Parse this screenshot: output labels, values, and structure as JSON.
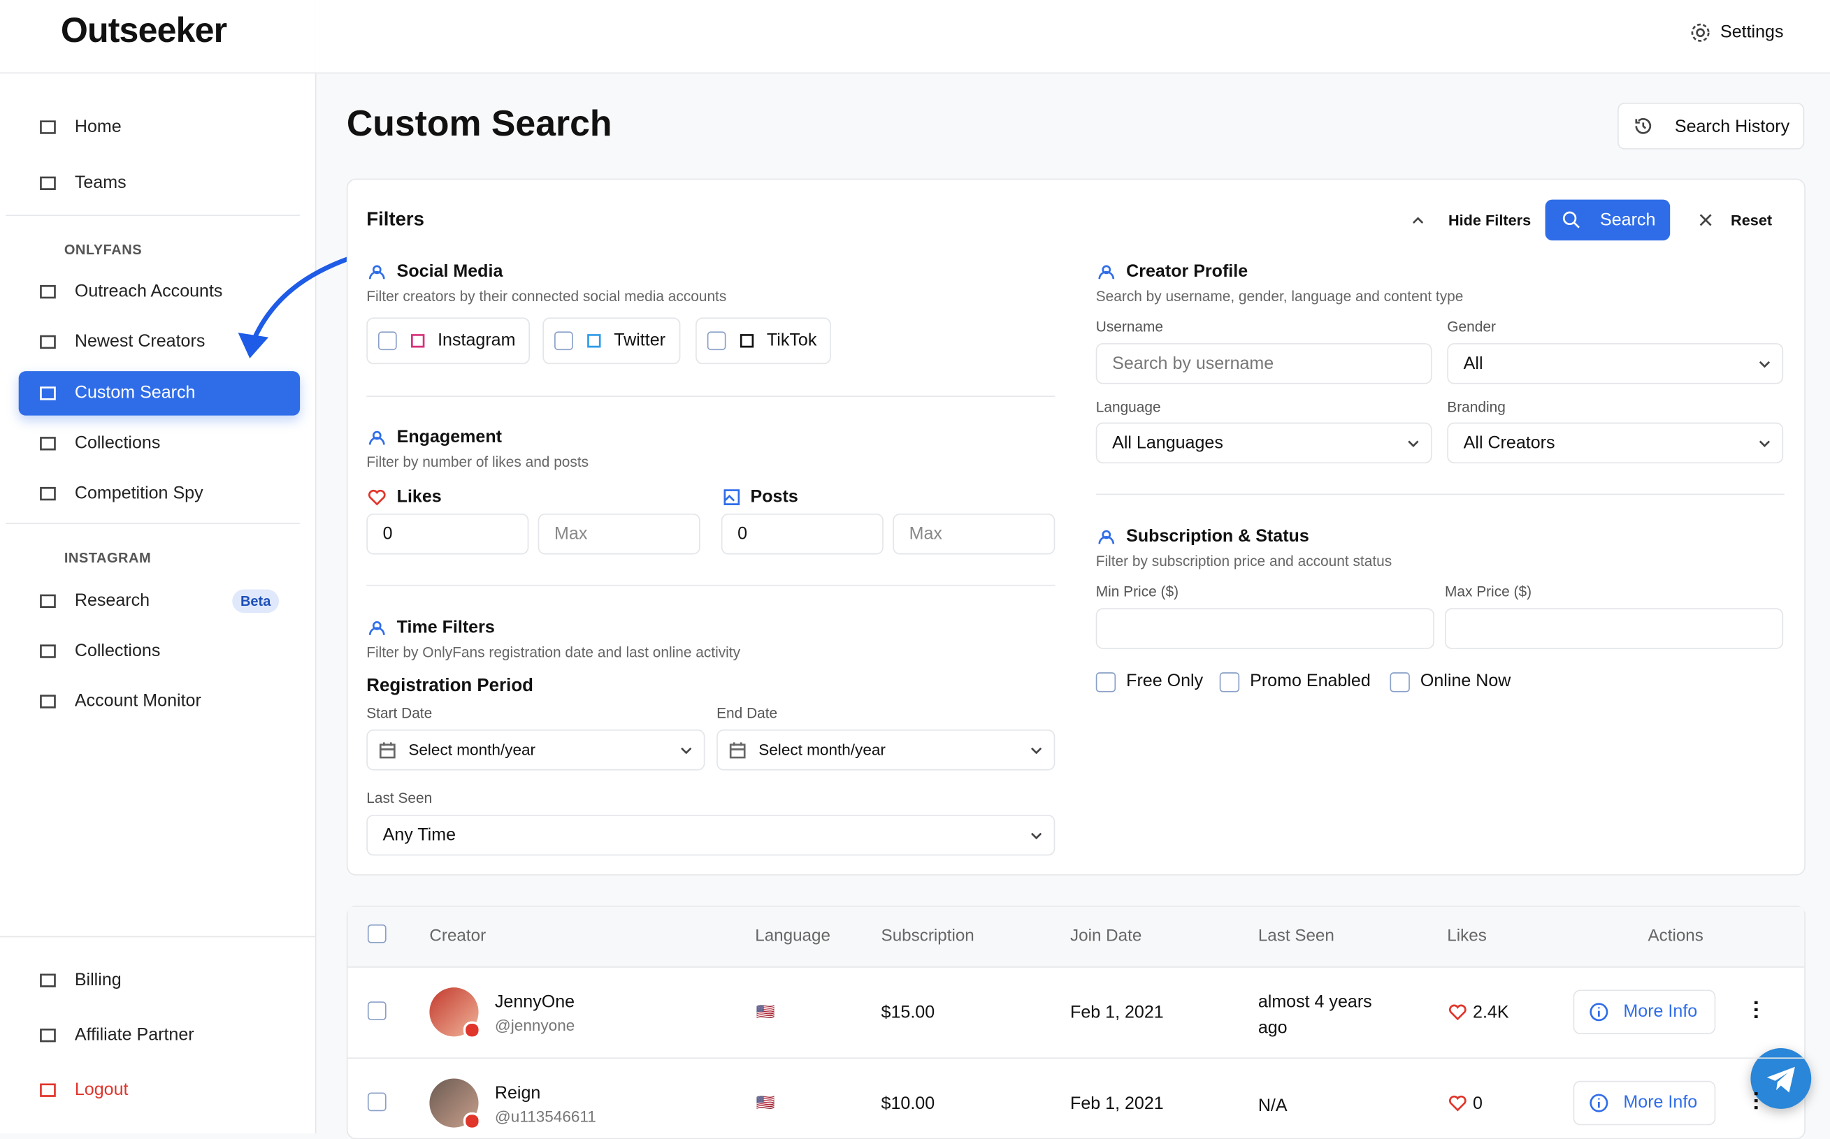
{
  "brand": "Outseeker",
  "header": {
    "settings": "Settings"
  },
  "sidebar": {
    "top": [
      "Home",
      "Teams"
    ],
    "sections": [
      {
        "title": "ONLYFANS",
        "items": [
          "Outreach Accounts",
          "Newest Creators",
          "Custom Search",
          "Collections",
          "Competition Spy"
        ]
      },
      {
        "title": "INSTAGRAM",
        "items": [
          "Research",
          "Collections",
          "Account Monitor"
        ],
        "badge": "Beta"
      }
    ],
    "bottom": [
      "Billing",
      "Affiliate Partner",
      "Logout"
    ]
  },
  "page": {
    "title": "Custom Search",
    "history": "Search History"
  },
  "filters": {
    "title": "Filters",
    "hide": "Hide Filters",
    "search": "Search",
    "reset": "Reset",
    "social": {
      "title": "Social Media",
      "desc": "Filter creators by their connected social media accounts",
      "options": [
        "Instagram",
        "Twitter",
        "TikTok"
      ]
    },
    "engagement": {
      "title": "Engagement",
      "desc": "Filter by number of likes and posts",
      "likes": "Likes",
      "posts": "Posts",
      "min_value": "0",
      "max_placeholder": "Max"
    },
    "time": {
      "title": "Time Filters",
      "desc": "Filter by OnlyFans registration date and last online activity",
      "period": "Registration Period",
      "start": "Start Date",
      "end": "End Date",
      "select": "Select month/year",
      "last_seen": "Last Seen",
      "last_seen_value": "Any Time"
    },
    "profile": {
      "title": "Creator Profile",
      "desc": "Search by username, gender, language and content type",
      "username": "Username",
      "username_placeholder": "Search by username",
      "gender": "Gender",
      "gender_value": "All",
      "language": "Language",
      "language_value": "All Languages",
      "branding": "Branding",
      "branding_value": "All Creators"
    },
    "subscription": {
      "title": "Subscription & Status",
      "desc": "Filter by subscription price and account status",
      "min": "Min Price ($)",
      "max": "Max Price ($)",
      "checks": [
        "Free Only",
        "Promo Enabled",
        "Online Now"
      ]
    }
  },
  "table": {
    "headers": [
      "Creator",
      "Language",
      "Subscription",
      "Join Date",
      "Last Seen",
      "Likes",
      "Actions"
    ],
    "rows": [
      {
        "name": "JennyOne",
        "handle": "@jennyone",
        "language": "🇺🇸",
        "subscription": "$15.00",
        "join": "Feb 1, 2021",
        "last_seen": "almost 4 years ago",
        "likes": "2.4K",
        "action": "More Info"
      },
      {
        "name": "Reign",
        "handle": "@u113546611",
        "language": "🇺🇸",
        "subscription": "$10.00",
        "join": "Feb 1, 2021",
        "last_seen": "N/A",
        "likes": "0",
        "action": "More Info"
      }
    ]
  }
}
